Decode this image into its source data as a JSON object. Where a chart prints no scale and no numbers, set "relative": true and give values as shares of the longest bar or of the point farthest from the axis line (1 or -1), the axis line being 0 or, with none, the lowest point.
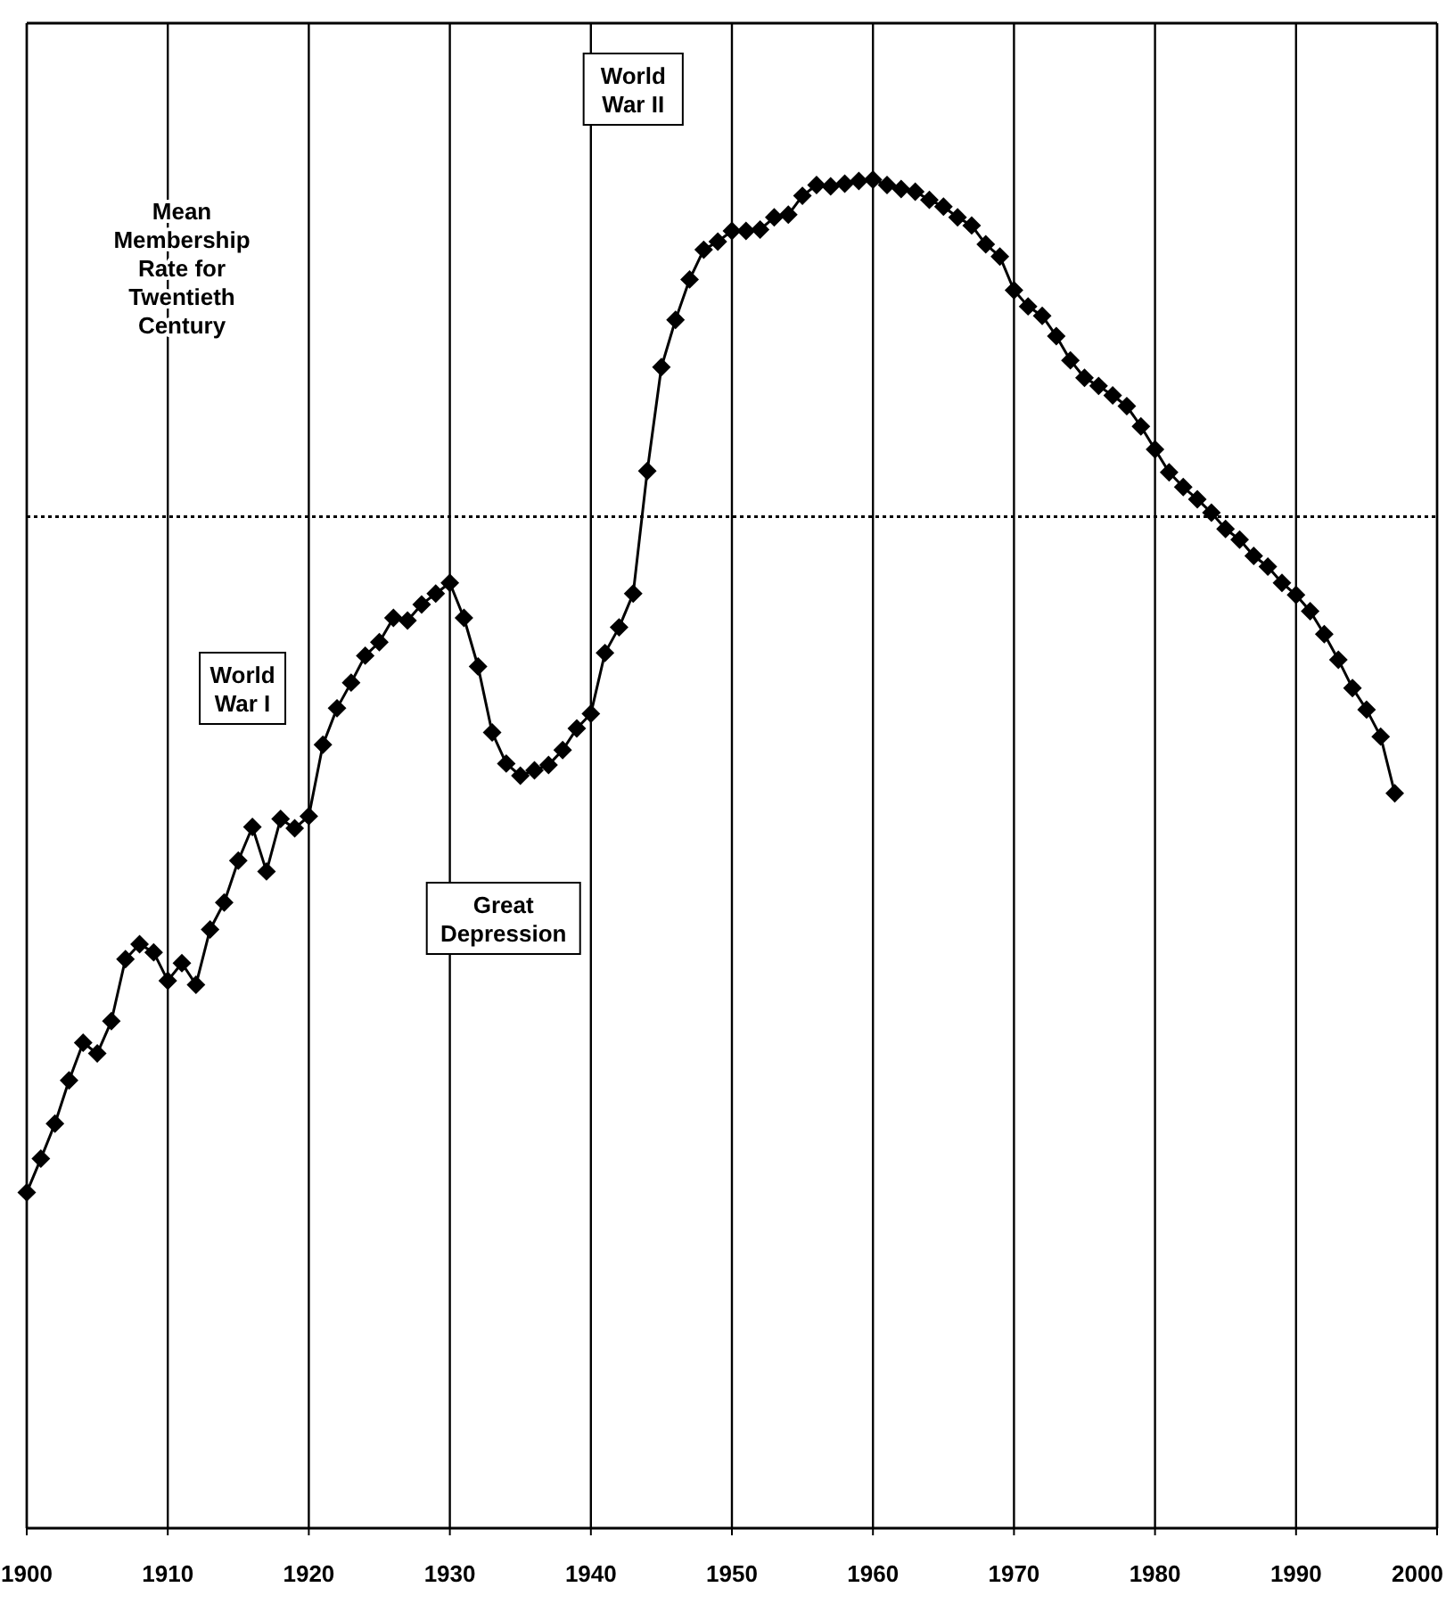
{
  "chart_data": {
    "type": "line",
    "relative": true,
    "x": [
      1900,
      1901,
      1902,
      1903,
      1904,
      1905,
      1906,
      1907,
      1908,
      1909,
      1910,
      1911,
      1912,
      1913,
      1914,
      1915,
      1916,
      1917,
      1918,
      1919,
      1920,
      1921,
      1922,
      1923,
      1924,
      1925,
      1926,
      1927,
      1928,
      1929,
      1930,
      1931,
      1932,
      1933,
      1934,
      1935,
      1936,
      1937,
      1938,
      1939,
      1940,
      1941,
      1942,
      1943,
      1944,
      1945,
      1946,
      1947,
      1948,
      1949,
      1950,
      1951,
      1952,
      1953,
      1954,
      1955,
      1956,
      1957,
      1958,
      1959,
      1960,
      1961,
      1962,
      1963,
      1964,
      1965,
      1966,
      1967,
      1968,
      1969,
      1970,
      1971,
      1972,
      1973,
      1974,
      1975,
      1976,
      1977,
      1978,
      1979,
      1980,
      1981,
      1982,
      1983,
      1984,
      1985,
      1986,
      1987,
      1988,
      1989,
      1990,
      1991,
      1992,
      1993,
      1994,
      1995,
      1996,
      1997
    ],
    "series": [
      {
        "color": "#000000",
        "values": [
          0.249,
          0.274,
          0.3,
          0.332,
          0.36,
          0.352,
          0.376,
          0.422,
          0.433,
          0.427,
          0.406,
          0.419,
          0.403,
          0.444,
          0.464,
          0.495,
          0.52,
          0.487,
          0.526,
          0.519,
          0.528,
          0.581,
          0.608,
          0.627,
          0.647,
          0.657,
          0.675,
          0.673,
          0.685,
          0.693,
          0.701,
          0.675,
          0.639,
          0.59,
          0.567,
          0.558,
          0.562,
          0.566,
          0.577,
          0.593,
          0.604,
          0.649,
          0.668,
          0.693,
          0.784,
          0.861,
          0.896,
          0.926,
          0.948,
          0.954,
          0.962,
          0.962,
          0.963,
          0.972,
          0.974,
          0.988,
          0.996,
          0.995,
          0.997,
          0.999,
          1.0,
          0.996,
          0.993,
          0.991,
          0.985,
          0.98,
          0.972,
          0.966,
          0.952,
          0.943,
          0.918,
          0.906,
          0.899,
          0.884,
          0.866,
          0.853,
          0.847,
          0.84,
          0.832,
          0.817,
          0.8,
          0.783,
          0.772,
          0.763,
          0.753,
          0.741,
          0.733,
          0.721,
          0.713,
          0.701,
          0.692,
          0.68,
          0.663,
          0.644,
          0.623,
          0.607,
          0.587,
          0.545
        ]
      }
    ],
    "xlim": [
      1900,
      2000
    ],
    "xticks": [
      1900,
      1910,
      1920,
      1930,
      1940,
      1950,
      1960,
      1970,
      1980,
      1990,
      2000
    ],
    "grid": "x",
    "marker": "diamond",
    "line_style": "solid",
    "ref_lines": [
      {
        "axis": "y",
        "value": 0.75,
        "label": "Mean Membership Rate for Twentieth Century",
        "line_style": "dotted",
        "color": "#000000"
      }
    ],
    "annotations": [
      "World War II",
      "World War I",
      "Great Depression"
    ]
  }
}
